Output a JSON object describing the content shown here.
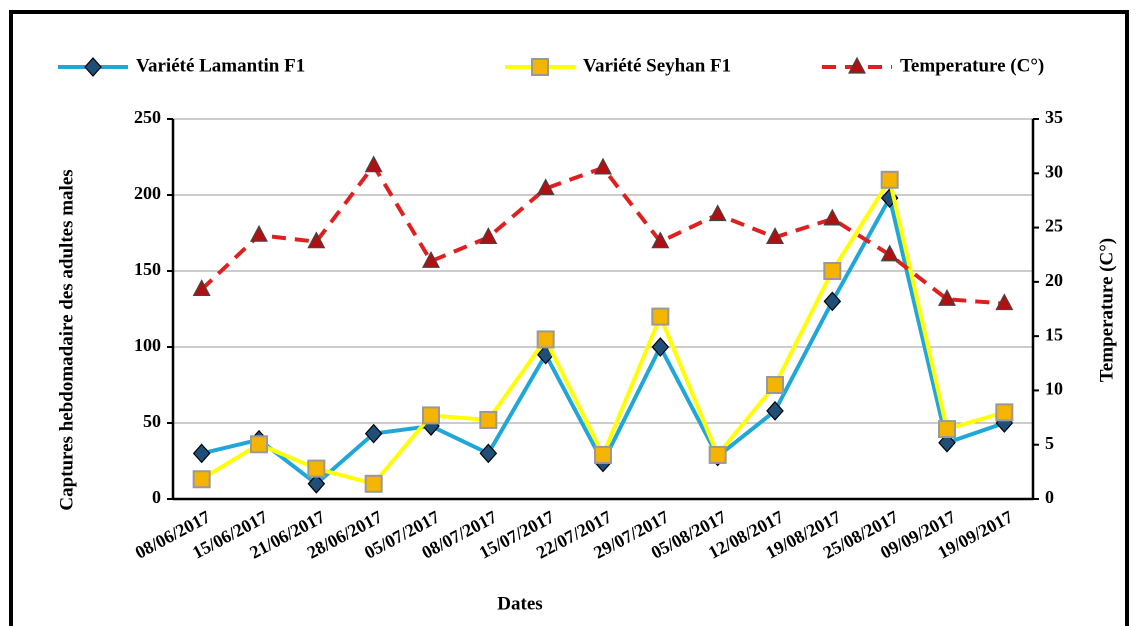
{
  "chart_data": {
    "type": "line",
    "x_label": "Dates",
    "y_label": "Captures hebdomadaire des adultes males",
    "y2_label": "Temperature (C°)",
    "categories": [
      "08/06/2017",
      "15/06/2017",
      "21/06/2017",
      "28/06/2017",
      "05/07/2017",
      "08/07/2017",
      "15/07/2017",
      "22/07/2017",
      "29/07/2017",
      "05/08/2017",
      "12/08/2017",
      "19/08/2017",
      "25/08/2017",
      "09/09/2017",
      "19/09/2017"
    ],
    "series": [
      {
        "name": "Variété Lamantin F1",
        "color": "#1ea7d8",
        "marker": "diamond",
        "marker_color": "#1f4e79",
        "values": [
          30,
          39,
          10,
          43,
          48,
          30,
          95,
          24,
          100,
          28,
          58,
          130,
          198,
          37,
          50
        ]
      },
      {
        "name": "Variété Seyhan F1",
        "color": "#ffff00",
        "marker": "square",
        "marker_color": "#f5b400",
        "values": [
          13,
          36,
          20,
          10,
          55,
          52,
          105,
          29,
          120,
          29,
          75,
          150,
          210,
          46,
          57
        ]
      },
      {
        "name": "Temperature (C°)",
        "color": "#e02020",
        "marker": "triangle",
        "marker_color": "#b01010",
        "dashed": true,
        "axis": "y2",
        "values": [
          19.3,
          24.3,
          23.7,
          30.7,
          21.9,
          24.1,
          28.6,
          30.5,
          23.7,
          26.2,
          24.1,
          25.8,
          22.5,
          18.4,
          18.0
        ]
      }
    ],
    "ylim": [
      0,
      250
    ],
    "yticks": [
      0,
      50,
      100,
      150,
      200,
      250
    ],
    "y2lim": [
      0,
      35
    ],
    "y2ticks": [
      0,
      5,
      10,
      15,
      20,
      25,
      30,
      35
    ],
    "grid": true,
    "legend": "top"
  }
}
